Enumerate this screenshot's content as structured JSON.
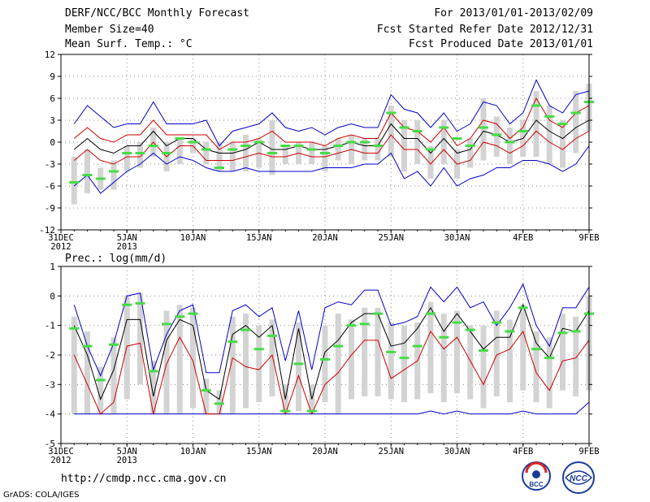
{
  "header": {
    "title": "DERF/NCC/BCC Monthly Forecast",
    "member_size": "Member Size=40",
    "variable1": "Mean Surf. Temp.: °C",
    "period": "For 2013/01/01-2013/02/09",
    "fcst_started": "Fcst Started Refer Date 2012/12/31",
    "fcst_produced": "Fcst Produced Date 2013/01/01"
  },
  "footer": {
    "url": "http://cmdp.ncc.cma.gov.cn",
    "grads": "GrADS: COLA/IGES",
    "logo_bcc": "BCC",
    "logo_ncc": "NCC"
  },
  "colors": {
    "grid": "#888888",
    "box": "#d3d3d3",
    "mean": "#000000",
    "spread": "#cc0000",
    "extreme": "#0000cc",
    "obs": "#44dd44"
  },
  "chart_data": [
    {
      "type": "line",
      "title": "Mean Surf. Temp.: °C",
      "ylim": [
        -12,
        12
      ],
      "yticks": [
        "12",
        "9",
        "6",
        "3",
        "0",
        "-3",
        "-6",
        "-9",
        "-12"
      ],
      "ytick_values": [
        12,
        9,
        6,
        3,
        0,
        -3,
        -6,
        -9,
        -12
      ],
      "xtick_labels": [
        [
          "31DEC",
          "2012"
        ],
        [
          "5JAN",
          "2013"
        ],
        [
          "10JAN"
        ],
        [
          "15JAN"
        ],
        [
          "20JAN"
        ],
        [
          "25JAN"
        ],
        [
          "30JAN"
        ],
        [
          "4FEB"
        ],
        [
          "9FEB"
        ]
      ],
      "xtick_days": [
        0,
        5,
        10,
        15,
        20,
        25,
        30,
        35,
        40
      ],
      "x": [
        1,
        2,
        3,
        4,
        5,
        6,
        7,
        8,
        9,
        10,
        11,
        12,
        13,
        14,
        15,
        16,
        17,
        18,
        19,
        20,
        21,
        22,
        23,
        24,
        25,
        26,
        27,
        28,
        29,
        30,
        31,
        32,
        33,
        34,
        35,
        36,
        37,
        38,
        39,
        40
      ],
      "series": [
        {
          "name": "max",
          "values": [
            2.5,
            5,
            3.5,
            2,
            2.5,
            2.5,
            5.5,
            2.5,
            2.5,
            2.5,
            3,
            -0.5,
            1.5,
            2,
            2.5,
            4,
            2,
            1.5,
            2,
            1,
            2,
            2.5,
            2,
            2,
            6.5,
            4.5,
            4,
            2,
            4,
            1.5,
            2.5,
            5.5,
            5,
            2.5,
            4,
            8.5,
            5,
            4,
            6.5,
            7
          ]
        },
        {
          "name": "upper",
          "values": [
            0.5,
            2,
            0.5,
            0,
            1,
            1,
            3,
            1,
            1,
            1,
            1,
            -1,
            0,
            0,
            0.5,
            1.5,
            0,
            0,
            0,
            -0.5,
            0.5,
            1,
            0.5,
            0.5,
            4,
            2,
            1.5,
            0,
            2,
            -0.5,
            0.5,
            3,
            2.5,
            0.5,
            2,
            6,
            3,
            2,
            4,
            5
          ]
        },
        {
          "name": "mean",
          "values": [
            -1,
            0.5,
            -1,
            -1.5,
            -0.5,
            -0.5,
            1.5,
            -0.5,
            0.5,
            0.5,
            -1,
            -1.5,
            -1.5,
            -1,
            0,
            -1,
            -1,
            -0.5,
            -1,
            -1,
            -0.5,
            0,
            -0.5,
            -0.5,
            2.5,
            0.5,
            0.5,
            -1.5,
            0.5,
            -1.5,
            -1,
            1.5,
            1,
            0,
            0.5,
            3,
            1.5,
            0.5,
            2,
            3
          ]
        },
        {
          "name": "lower",
          "values": [
            -2.5,
            -1,
            -2.5,
            -3,
            -2,
            -2,
            0,
            -2,
            -0.5,
            -0.5,
            -2.5,
            -2.5,
            -2.5,
            -2,
            -1.5,
            -2,
            -2,
            -1.5,
            -2,
            -2,
            -1.5,
            -1,
            -1.5,
            -1.5,
            1,
            -1,
            -1,
            -3,
            -1,
            -3,
            -2.5,
            0,
            -0.5,
            -1.5,
            -0.5,
            1.5,
            0,
            -1,
            0.5,
            1.5
          ]
        },
        {
          "name": "min",
          "values": [
            -6,
            -4.5,
            -7,
            -5.5,
            -4,
            -3,
            -1.5,
            -3,
            -2,
            -2.5,
            -3.5,
            -4,
            -4,
            -3.5,
            -4,
            -4,
            -4,
            -4,
            -4,
            -3.5,
            -3.5,
            -3.5,
            -3,
            -3,
            -1.5,
            -5,
            -4,
            -6,
            -3.5,
            -6,
            -5,
            -4.5,
            -3.5,
            -3.5,
            -2.5,
            -2.5,
            -3,
            -4,
            -3,
            -0.5
          ]
        },
        {
          "name": "box_top",
          "values": [
            -2,
            -1,
            -3.5,
            -2.5,
            -0.5,
            0,
            2,
            0,
            0.5,
            0.5,
            0,
            0,
            0,
            1,
            0.5,
            3,
            -0.5,
            0,
            0,
            -0.5,
            0.5,
            1,
            0.5,
            0.5,
            5,
            3,
            3,
            -0.5,
            3,
            -1,
            0.5,
            6,
            3.5,
            2,
            3,
            7,
            5,
            3,
            7,
            8
          ]
        },
        {
          "name": "box_bottom",
          "values": [
            -8.5,
            -7,
            -6.5,
            -6.5,
            -4,
            -3.5,
            -2,
            -4,
            -3,
            -1.5,
            -3,
            -4,
            -4,
            -4,
            -3.5,
            -4.5,
            -3,
            -3,
            -3,
            -4,
            -2.5,
            -3,
            -2.5,
            -2.5,
            -2,
            -4,
            -3,
            -5,
            -3,
            -5,
            -3.5,
            -2.5,
            -2,
            -3,
            -2,
            -2,
            -3,
            -3.5,
            -1.5,
            1.5
          ]
        },
        {
          "name": "observed",
          "values": [
            -5.5,
            -4.5,
            -5,
            -4,
            -1.5,
            -1.5,
            -0.5,
            -1.5,
            0.5,
            0,
            -1,
            -3.5,
            -1,
            -0.5,
            0,
            -1.5,
            -0.5,
            -0.5,
            -1,
            -1.5,
            -0.5,
            0,
            0,
            -0.5,
            4,
            2,
            1.5,
            -1,
            2,
            0.5,
            -0.5,
            2,
            1,
            0,
            1.5,
            5,
            3.5,
            2.5,
            4,
            5.5
          ]
        }
      ]
    },
    {
      "type": "line",
      "title": "Prec.: log(mm/d)",
      "ylim": [
        -5,
        1
      ],
      "yticks": [
        "1",
        "0",
        "-1",
        "-2",
        "-3",
        "-4",
        "-5"
      ],
      "ytick_values": [
        1,
        0,
        -1,
        -2,
        -3,
        -4,
        -5
      ],
      "xtick_labels": [
        [
          "31DEC",
          "2012"
        ],
        [
          "5JAN",
          "2013"
        ],
        [
          "10JAN"
        ],
        [
          "15JAN"
        ],
        [
          "20JAN"
        ],
        [
          "25JAN"
        ],
        [
          "30JAN"
        ],
        [
          "4FEB"
        ],
        [
          "9FEB"
        ]
      ],
      "xtick_days": [
        0,
        5,
        10,
        15,
        20,
        25,
        30,
        35,
        40
      ],
      "x": [
        1,
        2,
        3,
        4,
        5,
        6,
        7,
        8,
        9,
        10,
        11,
        12,
        13,
        14,
        15,
        16,
        17,
        18,
        19,
        20,
        21,
        22,
        23,
        24,
        25,
        26,
        27,
        28,
        29,
        30,
        31,
        32,
        33,
        34,
        35,
        36,
        37,
        38,
        39,
        40
      ],
      "series": [
        {
          "name": "max",
          "values": [
            -0.3,
            -1.7,
            -2.7,
            -1.6,
            0,
            0.1,
            -2.5,
            -1.3,
            -0.5,
            -0.3,
            -2.6,
            -2.6,
            -0.5,
            -0.3,
            -0.7,
            -0.4,
            -2.2,
            -0.5,
            -2.5,
            -0.4,
            -0.2,
            -0.3,
            0.2,
            0.2,
            -1,
            -0.9,
            -0.7,
            0.3,
            -0.2,
            0.3,
            -0.4,
            -0.2,
            -1,
            -0.4,
            0.4,
            -1,
            -1.7,
            -0.4,
            -0.4,
            0.3
          ]
        },
        {
          "name": "mean",
          "values": [
            -1,
            -2,
            -3.5,
            -2.5,
            -0.8,
            -0.8,
            -3.4,
            -1.5,
            -0.8,
            -1,
            -3.2,
            -3.5,
            -1.3,
            -1,
            -1.4,
            -1,
            -3.5,
            -1.1,
            -3.5,
            -1.9,
            -1.5,
            -0.9,
            -0.6,
            -0.6,
            -1.7,
            -1.6,
            -1.1,
            -0.4,
            -1.2,
            -0.6,
            -1.2,
            -1.8,
            -1.4,
            -1.4,
            -0.3,
            -1.6,
            -2.1,
            -1.1,
            -1.2,
            -0.5
          ]
        },
        {
          "name": "lower",
          "values": [
            -2,
            -3,
            -4,
            -3.6,
            -1.7,
            -1.6,
            -4,
            -2.3,
            -1.4,
            -2.2,
            -4,
            -4,
            -2.1,
            -2.4,
            -2.5,
            -2,
            -4,
            -2.7,
            -4,
            -3,
            -2.6,
            -2,
            -1.5,
            -1.5,
            -2.8,
            -2.5,
            -2.2,
            -1.2,
            -1.8,
            -1.4,
            -2.2,
            -3,
            -2,
            -1.8,
            -1.2,
            -2.6,
            -3.2,
            -2.2,
            -2.1,
            -1.5
          ]
        },
        {
          "name": "min",
          "values": [
            -4,
            -4,
            -4,
            -4,
            -4,
            -4,
            -4,
            -4,
            -4,
            -4,
            -4,
            -4,
            -4,
            -4,
            -4,
            -4,
            -4,
            -4,
            -4,
            -4,
            -4,
            -4,
            -4,
            -4,
            -4,
            -4,
            -4,
            -3.9,
            -4,
            -3.9,
            -4,
            -4,
            -4,
            -4,
            -3.9,
            -4,
            -4,
            -4,
            -4,
            -3.6
          ]
        },
        {
          "name": "box_top",
          "values": [
            -0.7,
            -1.2,
            -2.4,
            -1.4,
            0,
            0.1,
            -2.2,
            -0.5,
            -0.3,
            -0.4,
            -2.8,
            -3.2,
            -0.7,
            -0.6,
            -1,
            -0.8,
            -3,
            -0.9,
            -3,
            -1,
            -0.6,
            -0.8,
            -0.4,
            -0.4,
            -0.9,
            -1,
            -0.9,
            -0.2,
            -0.6,
            -0.5,
            -1,
            -1,
            -0.5,
            -0.8,
            -0.3,
            -1.2,
            -1.4,
            -0.6,
            -0.7,
            0
          ]
        },
        {
          "name": "box_bottom",
          "values": [
            -4,
            -4,
            -4,
            -4,
            -3.5,
            -3,
            -4,
            -4,
            -4,
            -3.8,
            -4,
            -4,
            -4,
            -3.8,
            -3.6,
            -3.4,
            -4,
            -3.9,
            -4,
            -3.6,
            -4,
            -3.5,
            -3.4,
            -3.4,
            -3.5,
            -3.6,
            -3.5,
            -3.3,
            -3.6,
            -3.3,
            -3.5,
            -3.8,
            -3.4,
            -3.6,
            -3.2,
            -3.6,
            -3.8,
            -3.2,
            -3.4,
            -3.2
          ]
        },
        {
          "name": "observed",
          "values": [
            -1.1,
            -1.7,
            -2.85,
            -1.65,
            -0.3,
            -0.25,
            -2.55,
            -0.95,
            -0.7,
            -0.6,
            -3.2,
            -3.65,
            -1.55,
            -1.15,
            -1.8,
            -1.35,
            -3.9,
            -2.3,
            -3.9,
            -2.15,
            -1.7,
            -1,
            -0.95,
            -0.6,
            -1.9,
            -2.1,
            -1.7,
            -0.6,
            -1.4,
            -0.9,
            -1.15,
            -1.85,
            -0.9,
            -1.2,
            -0.4,
            -1.8,
            -2.1,
            -1.25,
            -1.2,
            -0.6
          ]
        }
      ]
    }
  ]
}
